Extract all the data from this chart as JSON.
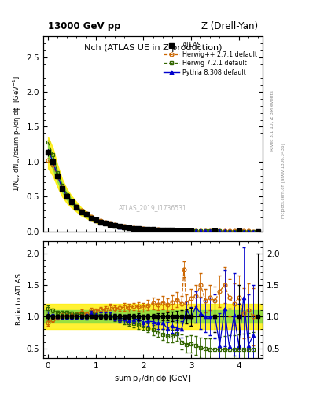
{
  "title_main": "Nch (ATLAS UE in Z production)",
  "top_left_label": "13000 GeV pp",
  "top_right_label": "Z (Drell-Yan)",
  "ylabel_main": "1/N$_{ev}$ dN$_{ev}$/dsum p$_T$/dη dϕ  [GeV$^{-1}$]",
  "ylabel_ratio": "Ratio to ATLAS",
  "xlabel": "sum p$_T$/dη dϕ [GeV]",
  "watermark": "ATLAS_2019_I1736531",
  "rivet_label": "Rivet 3.1.10, ≥ 3M events",
  "side_label": "mcplots.cern.ch [arXiv:1306.3436]",
  "atlas_x": [
    0.0,
    0.1,
    0.2,
    0.3,
    0.4,
    0.5,
    0.6,
    0.7,
    0.8,
    0.9,
    1.0,
    1.1,
    1.2,
    1.3,
    1.4,
    1.5,
    1.6,
    1.7,
    1.8,
    1.9,
    2.0,
    2.1,
    2.2,
    2.3,
    2.4,
    2.5,
    2.6,
    2.7,
    2.8,
    2.9,
    3.0,
    3.5,
    4.0,
    4.4
  ],
  "atlas_y": [
    1.13,
    1.0,
    0.79,
    0.62,
    0.5,
    0.42,
    0.35,
    0.28,
    0.24,
    0.19,
    0.16,
    0.135,
    0.115,
    0.095,
    0.082,
    0.07,
    0.06,
    0.052,
    0.044,
    0.038,
    0.033,
    0.028,
    0.024,
    0.021,
    0.018,
    0.016,
    0.013,
    0.011,
    0.01,
    0.009,
    0.007,
    0.004,
    0.002,
    0.001
  ],
  "atlas_ey": [
    0.05,
    0.03,
    0.02,
    0.015,
    0.012,
    0.01,
    0.008,
    0.007,
    0.006,
    0.005,
    0.005,
    0.004,
    0.004,
    0.003,
    0.003,
    0.003,
    0.002,
    0.002,
    0.002,
    0.002,
    0.001,
    0.001,
    0.001,
    0.001,
    0.001,
    0.001,
    0.001,
    0.001,
    0.001,
    0.001,
    0.001,
    0.001,
    0.001,
    0.001
  ],
  "atlas_exl": [
    0.05,
    0.05,
    0.05,
    0.05,
    0.05,
    0.05,
    0.05,
    0.05,
    0.05,
    0.05,
    0.05,
    0.05,
    0.05,
    0.05,
    0.05,
    0.05,
    0.05,
    0.05,
    0.05,
    0.05,
    0.05,
    0.05,
    0.05,
    0.05,
    0.05,
    0.05,
    0.05,
    0.05,
    0.05,
    0.05,
    0.05,
    0.05,
    0.05,
    0.05
  ],
  "herwig_x": [
    0.0,
    0.1,
    0.2,
    0.3,
    0.4,
    0.5,
    0.6,
    0.7,
    0.8,
    0.9,
    1.0,
    1.1,
    1.2,
    1.3,
    1.4,
    1.5,
    1.6,
    1.7,
    1.8,
    1.9,
    2.0,
    2.1,
    2.2,
    2.3,
    2.4,
    2.5,
    2.6,
    2.7,
    2.8,
    2.9,
    3.0,
    3.1,
    3.2,
    3.3,
    3.4,
    3.5,
    3.6,
    3.7,
    3.8,
    3.9,
    4.0,
    4.1,
    4.2,
    4.3
  ],
  "herwig_y": [
    1.02,
    0.95,
    0.78,
    0.63,
    0.51,
    0.43,
    0.36,
    0.3,
    0.25,
    0.21,
    0.175,
    0.15,
    0.128,
    0.109,
    0.093,
    0.08,
    0.069,
    0.059,
    0.051,
    0.044,
    0.038,
    0.033,
    0.029,
    0.025,
    0.022,
    0.019,
    0.016,
    0.014,
    0.012,
    0.011,
    0.009,
    0.008,
    0.007,
    0.006,
    0.005,
    0.005,
    0.004,
    0.004,
    0.003,
    0.003,
    0.002,
    0.002,
    0.002,
    0.001
  ],
  "herwig72_x": [
    0.0,
    0.1,
    0.2,
    0.3,
    0.4,
    0.5,
    0.6,
    0.7,
    0.8,
    0.9,
    1.0,
    1.1,
    1.2,
    1.3,
    1.4,
    1.5,
    1.6,
    1.7,
    1.8,
    1.9,
    2.0,
    2.1,
    2.2,
    2.3,
    2.4,
    2.5,
    2.6,
    2.7,
    2.8,
    2.9,
    3.0,
    3.1,
    3.2,
    3.3,
    3.4,
    3.5,
    3.6,
    3.7,
    3.8,
    3.9,
    4.0,
    4.1,
    4.2,
    4.3
  ],
  "herwig72_y": [
    1.28,
    1.1,
    0.84,
    0.66,
    0.53,
    0.44,
    0.36,
    0.29,
    0.24,
    0.2,
    0.165,
    0.138,
    0.115,
    0.096,
    0.08,
    0.067,
    0.056,
    0.047,
    0.039,
    0.033,
    0.028,
    0.023,
    0.019,
    0.016,
    0.013,
    0.011,
    0.009,
    0.008,
    0.006,
    0.005,
    0.004,
    0.004,
    0.003,
    0.003,
    0.002,
    0.002,
    0.002,
    0.001,
    0.001,
    0.001,
    0.001,
    0.001,
    0.001,
    0.001
  ],
  "pythia_x": [
    0.0,
    0.1,
    0.2,
    0.3,
    0.4,
    0.5,
    0.6,
    0.7,
    0.8,
    0.9,
    1.0,
    1.1,
    1.2,
    1.3,
    1.4,
    1.5,
    1.6,
    1.7,
    1.8,
    1.9,
    2.0,
    2.1,
    2.2,
    2.3,
    2.4,
    2.5,
    2.6,
    2.7,
    2.8,
    2.9,
    3.0,
    3.1,
    3.2,
    3.3,
    3.4,
    3.5,
    3.6,
    3.7,
    3.8,
    3.9,
    4.0,
    4.1,
    4.2,
    4.3
  ],
  "pythia_y": [
    1.16,
    1.01,
    0.79,
    0.62,
    0.5,
    0.42,
    0.35,
    0.28,
    0.24,
    0.2,
    0.165,
    0.138,
    0.116,
    0.096,
    0.081,
    0.068,
    0.058,
    0.049,
    0.042,
    0.036,
    0.03,
    0.026,
    0.022,
    0.019,
    0.016,
    0.013,
    0.011,
    0.009,
    0.008,
    0.007,
    0.006,
    0.005,
    0.004,
    0.004,
    0.003,
    0.003,
    0.002,
    0.002,
    0.002,
    0.001,
    0.001,
    0.001,
    0.001,
    0.001
  ],
  "herwig_ratio_x": [
    0.0,
    0.1,
    0.2,
    0.3,
    0.4,
    0.5,
    0.6,
    0.7,
    0.8,
    0.9,
    1.0,
    1.1,
    1.2,
    1.3,
    1.4,
    1.5,
    1.6,
    1.7,
    1.8,
    1.9,
    2.0,
    2.1,
    2.2,
    2.3,
    2.4,
    2.5,
    2.6,
    2.7,
    2.8,
    2.85,
    2.9,
    3.0,
    3.1,
    3.2,
    3.3,
    3.4,
    3.5,
    3.6,
    3.7,
    3.8,
    3.9,
    4.0,
    4.1,
    4.2,
    4.3
  ],
  "herwig_ratio_y": [
    0.9,
    0.95,
    0.99,
    1.02,
    1.02,
    1.02,
    1.03,
    1.07,
    1.04,
    1.1,
    1.09,
    1.11,
    1.11,
    1.15,
    1.13,
    1.14,
    1.15,
    1.14,
    1.16,
    1.16,
    1.15,
    1.18,
    1.21,
    1.19,
    1.22,
    1.19,
    1.23,
    1.27,
    1.2,
    1.75,
    1.22,
    1.29,
    1.33,
    1.5,
    1.25,
    1.3,
    1.25,
    1.4,
    1.5,
    1.3,
    1.2,
    1.3,
    1.05,
    1.1,
    1.0
  ],
  "herwig_ratio_ey": [
    0.05,
    0.03,
    0.03,
    0.03,
    0.03,
    0.03,
    0.03,
    0.04,
    0.04,
    0.04,
    0.04,
    0.04,
    0.05,
    0.05,
    0.05,
    0.05,
    0.06,
    0.06,
    0.06,
    0.07,
    0.07,
    0.08,
    0.09,
    0.09,
    0.1,
    0.1,
    0.11,
    0.12,
    0.12,
    0.12,
    0.13,
    0.15,
    0.17,
    0.19,
    0.19,
    0.2,
    0.22,
    0.25,
    0.28,
    0.3,
    0.33,
    0.35,
    0.4,
    0.42,
    0.45
  ],
  "herwig72_ratio_x": [
    0.0,
    0.1,
    0.2,
    0.3,
    0.4,
    0.5,
    0.6,
    0.7,
    0.8,
    0.9,
    1.0,
    1.1,
    1.2,
    1.3,
    1.4,
    1.5,
    1.6,
    1.7,
    1.8,
    1.9,
    2.0,
    2.1,
    2.2,
    2.3,
    2.4,
    2.5,
    2.6,
    2.7,
    2.8,
    2.9,
    3.0,
    3.1,
    3.2,
    3.3,
    3.4,
    3.5,
    3.6,
    3.7,
    3.8,
    3.9,
    4.0,
    4.1,
    4.2,
    4.3
  ],
  "herwig72_ratio_y": [
    1.13,
    1.1,
    1.06,
    1.06,
    1.06,
    1.05,
    1.03,
    1.04,
    1.0,
    1.05,
    1.03,
    1.02,
    1.0,
    1.01,
    0.98,
    0.96,
    0.93,
    0.9,
    0.89,
    0.87,
    0.85,
    0.82,
    0.79,
    0.76,
    0.72,
    0.69,
    0.69,
    0.73,
    0.6,
    0.56,
    0.57,
    0.54,
    0.51,
    0.49,
    0.48,
    0.48,
    0.48,
    0.48,
    0.48,
    0.48,
    0.48,
    0.48,
    0.48,
    0.48
  ],
  "herwig72_ratio_ey": [
    0.05,
    0.03,
    0.03,
    0.03,
    0.03,
    0.03,
    0.03,
    0.03,
    0.03,
    0.04,
    0.04,
    0.04,
    0.04,
    0.04,
    0.05,
    0.05,
    0.05,
    0.05,
    0.06,
    0.06,
    0.06,
    0.07,
    0.08,
    0.08,
    0.09,
    0.09,
    0.1,
    0.11,
    0.12,
    0.13,
    0.14,
    0.15,
    0.16,
    0.17,
    0.18,
    0.19,
    0.2,
    0.21,
    0.22,
    0.23,
    0.24,
    0.25,
    0.26,
    0.27
  ],
  "pythia_ratio_x": [
    0.0,
    0.1,
    0.2,
    0.3,
    0.4,
    0.5,
    0.6,
    0.7,
    0.8,
    0.9,
    1.0,
    1.1,
    1.2,
    1.3,
    1.4,
    1.5,
    1.6,
    1.7,
    1.8,
    1.9,
    2.0,
    2.1,
    2.2,
    2.3,
    2.4,
    2.5,
    2.6,
    2.7,
    2.8,
    2.9,
    3.0,
    3.1,
    3.2,
    3.3,
    3.4,
    3.5,
    3.6,
    3.7,
    3.8,
    3.9,
    4.0,
    4.1,
    4.2,
    4.3
  ],
  "pythia_ratio_y": [
    1.03,
    1.01,
    1.0,
    1.0,
    1.0,
    1.0,
    1.0,
    1.0,
    1.0,
    1.05,
    1.03,
    1.02,
    1.01,
    1.01,
    0.99,
    0.97,
    0.97,
    0.94,
    0.95,
    0.97,
    0.91,
    0.93,
    0.92,
    0.9,
    0.9,
    0.82,
    0.85,
    0.82,
    0.8,
    1.1,
    1.0,
    1.15,
    1.05,
    1.0,
    1.0,
    1.0,
    0.55,
    1.13,
    0.53,
    1.03,
    0.55,
    1.3,
    0.55,
    0.7
  ],
  "pythia_ratio_ey": [
    0.05,
    0.03,
    0.03,
    0.03,
    0.03,
    0.03,
    0.03,
    0.03,
    0.04,
    0.04,
    0.04,
    0.04,
    0.05,
    0.05,
    0.05,
    0.05,
    0.06,
    0.06,
    0.06,
    0.06,
    0.07,
    0.07,
    0.08,
    0.09,
    0.09,
    0.1,
    0.11,
    0.12,
    0.13,
    0.14,
    0.15,
    0.25,
    0.25,
    0.25,
    0.3,
    0.35,
    0.5,
    0.6,
    0.6,
    0.65,
    0.65,
    0.8,
    0.8,
    0.8
  ],
  "atlas_color": "#000000",
  "herwig_color": "#cc6600",
  "herwig72_color": "#336600",
  "pythia_color": "#0000cc",
  "band_yellow": 0.2,
  "band_green": 0.1,
  "xlim": [
    -0.1,
    4.5
  ],
  "ylim_main": [
    0,
    2.8
  ],
  "ylim_ratio": [
    0.35,
    2.2
  ]
}
